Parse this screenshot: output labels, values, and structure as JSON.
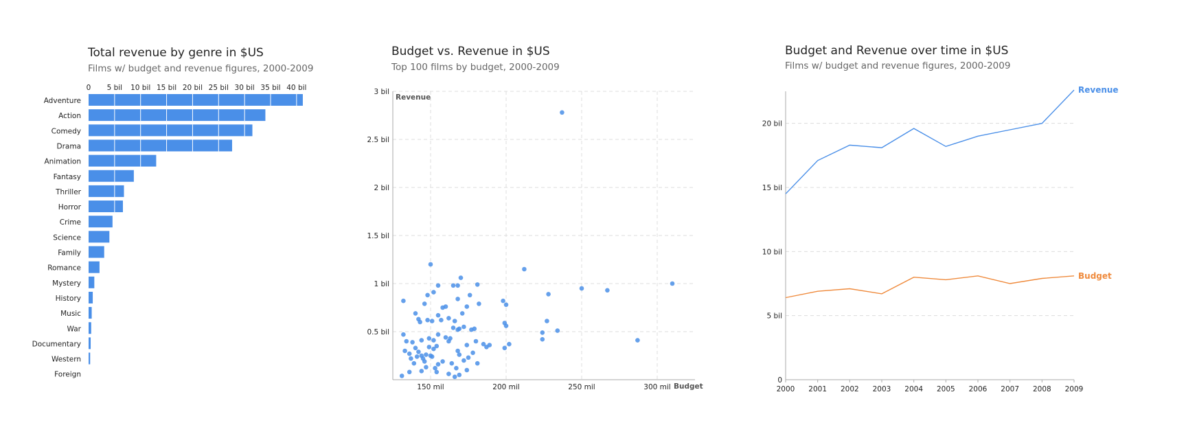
{
  "colors": {
    "primary": "#4a8fe8",
    "budget": "#ef8a3c"
  },
  "chart_data": [
    {
      "type": "bar",
      "title": "Total revenue by genre in $US",
      "subtitle": "Films w/ budget and revenue figures, 2000-2009",
      "orientation": "horizontal",
      "categories": [
        "Adventure",
        "Action",
        "Comedy",
        "Drama",
        "Animation",
        "Fantasy",
        "Thriller",
        "Horror",
        "Crime",
        "Science",
        "Family",
        "Romance",
        "Mystery",
        "History",
        "Music",
        "War",
        "Documentary",
        "Western",
        "Foreign"
      ],
      "values": [
        41.2,
        34.0,
        31.5,
        27.6,
        13.0,
        8.7,
        6.8,
        6.6,
        4.6,
        4.0,
        3.0,
        2.1,
        1.1,
        0.8,
        0.6,
        0.5,
        0.4,
        0.3,
        0.0
      ],
      "ticks": [
        0,
        5,
        10,
        15,
        20,
        25,
        30,
        35,
        40
      ],
      "tick_labels": [
        "0",
        "5 bil",
        "10 bil",
        "15 bil",
        "20 bil",
        "25 bil",
        "30 bil",
        "35 bil",
        "40 bil"
      ],
      "xlim": [
        0,
        42
      ],
      "units": "billions US$",
      "axis_position": "top"
    },
    {
      "type": "scatter",
      "title": "Budget vs. Revenue in $US",
      "subtitle": "Top 100 films by budget, 2000-2009",
      "xlabel": "Budget",
      "ylabel": "Revenue",
      "x_ticks": [
        150,
        200,
        250,
        300
      ],
      "x_tick_labels": [
        "150 mil",
        "200 mil",
        "250 mil",
        "300 mil"
      ],
      "y_ticks": [
        0.5,
        1,
        1.5,
        2,
        2.5,
        3
      ],
      "y_tick_labels": [
        "0.5 bil",
        "1 bil",
        "1.5 bil",
        "2 bil",
        "2.5 bil",
        "3 bil"
      ],
      "xlim": [
        125,
        325
      ],
      "ylim": [
        0,
        3
      ],
      "x_units": "millions US$",
      "y_units": "billions US$",
      "grid": true,
      "points": [
        [
          237,
          2.78
        ],
        [
          150,
          1.2
        ],
        [
          212,
          1.15
        ],
        [
          170,
          1.06
        ],
        [
          310,
          1.0
        ],
        [
          181,
          0.99
        ],
        [
          165,
          0.98
        ],
        [
          168,
          0.98
        ],
        [
          155,
          0.98
        ],
        [
          250,
          0.95
        ],
        [
          267,
          0.93
        ],
        [
          228,
          0.89
        ],
        [
          152,
          0.91
        ],
        [
          176,
          0.88
        ],
        [
          148,
          0.88
        ],
        [
          198,
          0.82
        ],
        [
          132,
          0.82
        ],
        [
          146,
          0.79
        ],
        [
          182,
          0.79
        ],
        [
          200,
          0.78
        ],
        [
          168,
          0.84
        ],
        [
          158,
          0.75
        ],
        [
          160,
          0.76
        ],
        [
          174,
          0.76
        ],
        [
          171,
          0.69
        ],
        [
          155,
          0.67
        ],
        [
          162,
          0.64
        ],
        [
          157,
          0.62
        ],
        [
          140,
          0.69
        ],
        [
          142,
          0.63
        ],
        [
          148,
          0.62
        ],
        [
          143,
          0.6
        ],
        [
          151,
          0.61
        ],
        [
          166,
          0.61
        ],
        [
          227,
          0.61
        ],
        [
          199,
          0.59
        ],
        [
          200,
          0.56
        ],
        [
          172,
          0.55
        ],
        [
          165,
          0.54
        ],
        [
          169,
          0.53
        ],
        [
          168,
          0.52
        ],
        [
          177,
          0.52
        ],
        [
          179,
          0.53
        ],
        [
          234,
          0.51
        ],
        [
          224,
          0.49
        ],
        [
          132,
          0.47
        ],
        [
          155,
          0.47
        ],
        [
          149,
          0.43
        ],
        [
          152,
          0.41
        ],
        [
          162,
          0.4
        ],
        [
          160,
          0.44
        ],
        [
          163,
          0.43
        ],
        [
          224,
          0.42
        ],
        [
          287,
          0.41
        ],
        [
          134,
          0.4
        ],
        [
          138,
          0.39
        ],
        [
          144,
          0.41
        ],
        [
          180,
          0.4
        ],
        [
          185,
          0.37
        ],
        [
          189,
          0.36
        ],
        [
          202,
          0.37
        ],
        [
          149,
          0.34
        ],
        [
          152,
          0.32
        ],
        [
          154,
          0.35
        ],
        [
          174,
          0.36
        ],
        [
          187,
          0.34
        ],
        [
          199,
          0.33
        ],
        [
          168,
          0.3
        ],
        [
          140,
          0.33
        ],
        [
          142,
          0.29
        ],
        [
          133,
          0.3
        ],
        [
          136,
          0.27
        ],
        [
          144,
          0.25
        ],
        [
          147,
          0.26
        ],
        [
          150,
          0.25
        ],
        [
          151,
          0.24
        ],
        [
          169,
          0.26
        ],
        [
          178,
          0.28
        ],
        [
          137,
          0.22
        ],
        [
          141,
          0.24
        ],
        [
          145,
          0.22
        ],
        [
          158,
          0.19
        ],
        [
          146,
          0.19
        ],
        [
          139,
          0.17
        ],
        [
          155,
          0.16
        ],
        [
          164,
          0.17
        ],
        [
          172,
          0.2
        ],
        [
          181,
          0.17
        ],
        [
          147,
          0.13
        ],
        [
          153,
          0.12
        ],
        [
          167,
          0.12
        ],
        [
          174,
          0.1
        ],
        [
          136,
          0.08
        ],
        [
          144,
          0.09
        ],
        [
          154,
          0.08
        ],
        [
          162,
          0.06
        ],
        [
          169,
          0.05
        ],
        [
          131,
          0.04
        ],
        [
          166,
          0.03
        ],
        [
          175,
          0.23
        ]
      ]
    },
    {
      "type": "line",
      "title": "Budget and Revenue over time in $US",
      "subtitle": "Films w/ budget and revenue figures, 2000-2009",
      "x": [
        2000,
        2001,
        2002,
        2003,
        2004,
        2005,
        2006,
        2007,
        2008,
        2009
      ],
      "x_tick_labels": [
        "2000",
        "2001",
        "2002",
        "2003",
        "2004",
        "2005",
        "2006",
        "2007",
        "2008",
        "2009"
      ],
      "y_ticks": [
        0,
        5,
        10,
        15,
        20
      ],
      "y_tick_labels": [
        "0",
        "5 bil",
        "10 bil",
        "15 bil",
        "20 bil"
      ],
      "ylim": [
        0,
        22.5
      ],
      "units": "billions US$",
      "grid": true,
      "series": [
        {
          "name": "Revenue",
          "color": "#4a8fe8",
          "values": [
            14.5,
            17.1,
            18.3,
            18.1,
            19.6,
            18.2,
            19.0,
            19.5,
            20.0,
            22.6
          ]
        },
        {
          "name": "Budget",
          "color": "#ef8a3c",
          "values": [
            6.4,
            6.9,
            7.1,
            6.7,
            8.0,
            7.8,
            8.1,
            7.5,
            7.9,
            8.1
          ]
        }
      ]
    }
  ]
}
